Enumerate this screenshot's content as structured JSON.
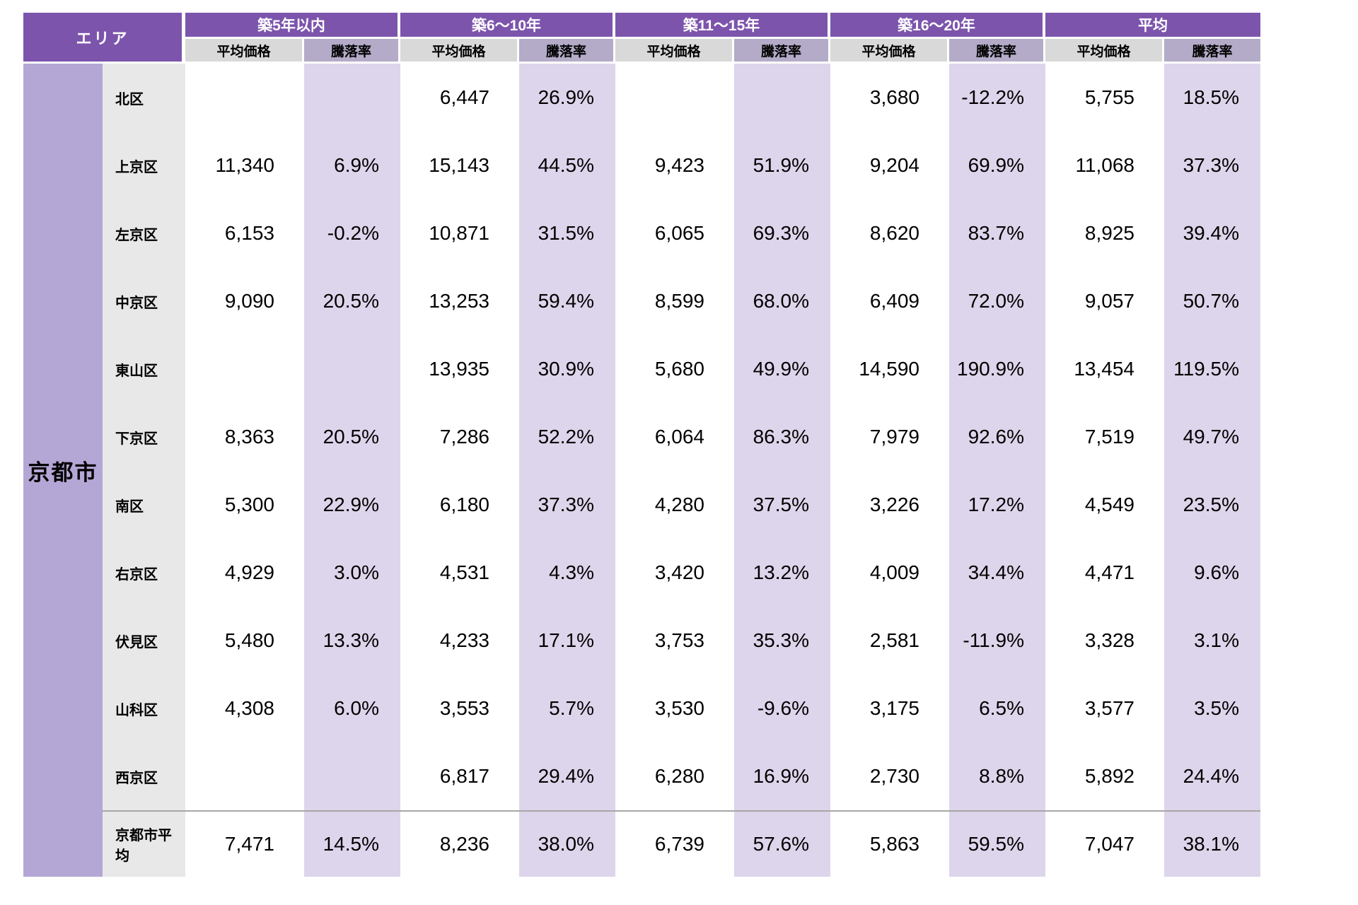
{
  "table": {
    "area_header": "エリア",
    "area_label": "京都市",
    "sub_price": "平均価格",
    "sub_rate": "騰落率",
    "groups": [
      "築5年以内",
      "築6〜10年",
      "築11〜15年",
      "築16〜20年",
      "平均"
    ],
    "rows": [
      {
        "ward": "北区",
        "summary": false,
        "values": [
          "",
          "",
          "6,447",
          "26.9%",
          "",
          "",
          "3,680",
          "-12.2%",
          "5,755",
          "18.5%"
        ]
      },
      {
        "ward": "上京区",
        "summary": false,
        "values": [
          "11,340",
          "6.9%",
          "15,143",
          "44.5%",
          "9,423",
          "51.9%",
          "9,204",
          "69.9%",
          "11,068",
          "37.3%"
        ]
      },
      {
        "ward": "左京区",
        "summary": false,
        "values": [
          "6,153",
          "-0.2%",
          "10,871",
          "31.5%",
          "6,065",
          "69.3%",
          "8,620",
          "83.7%",
          "8,925",
          "39.4%"
        ]
      },
      {
        "ward": "中京区",
        "summary": false,
        "values": [
          "9,090",
          "20.5%",
          "13,253",
          "59.4%",
          "8,599",
          "68.0%",
          "6,409",
          "72.0%",
          "9,057",
          "50.7%"
        ]
      },
      {
        "ward": "東山区",
        "summary": false,
        "values": [
          "",
          "",
          "13,935",
          "30.9%",
          "5,680",
          "49.9%",
          "14,590",
          "190.9%",
          "13,454",
          "119.5%"
        ]
      },
      {
        "ward": "下京区",
        "summary": false,
        "values": [
          "8,363",
          "20.5%",
          "7,286",
          "52.2%",
          "6,064",
          "86.3%",
          "7,979",
          "92.6%",
          "7,519",
          "49.7%"
        ]
      },
      {
        "ward": "南区",
        "summary": false,
        "values": [
          "5,300",
          "22.9%",
          "6,180",
          "37.3%",
          "4,280",
          "37.5%",
          "3,226",
          "17.2%",
          "4,549",
          "23.5%"
        ]
      },
      {
        "ward": "右京区",
        "summary": false,
        "values": [
          "4,929",
          "3.0%",
          "4,531",
          "4.3%",
          "3,420",
          "13.2%",
          "4,009",
          "34.4%",
          "4,471",
          "9.6%"
        ]
      },
      {
        "ward": "伏見区",
        "summary": false,
        "values": [
          "5,480",
          "13.3%",
          "4,233",
          "17.1%",
          "3,753",
          "35.3%",
          "2,581",
          "-11.9%",
          "3,328",
          "3.1%"
        ]
      },
      {
        "ward": "山科区",
        "summary": false,
        "values": [
          "4,308",
          "6.0%",
          "3,553",
          "5.7%",
          "3,530",
          "-9.6%",
          "3,175",
          "6.5%",
          "3,577",
          "3.5%"
        ]
      },
      {
        "ward": "西京区",
        "summary": false,
        "values": [
          "",
          "",
          "6,817",
          "29.4%",
          "6,280",
          "16.9%",
          "2,730",
          "8.8%",
          "5,892",
          "24.4%"
        ]
      },
      {
        "ward": "京都市平均",
        "summary": true,
        "values": [
          "7,471",
          "14.5%",
          "8,236",
          "38.0%",
          "6,739",
          "57.6%",
          "5,863",
          "59.5%",
          "7,047",
          "38.1%"
        ]
      }
    ],
    "colors": {
      "header_purple": "#7C54AC",
      "area_purple": "#B4A6D5",
      "subhead_gray": "#D9D9D9",
      "subhead_purple": "#B3ABC7",
      "band_purple": "#DDD5EB",
      "ward_gray": "#E8E8E8",
      "divider": "#A6A6A6"
    }
  },
  "chart_data": {
    "type": "table",
    "title": "エリア",
    "area": "京都市",
    "column_groups": [
      "築5年以内",
      "築6〜10年",
      "築11〜15年",
      "築16〜20年",
      "平均"
    ],
    "sub_columns": [
      "平均価格",
      "騰落率"
    ],
    "categories": [
      "北区",
      "上京区",
      "左京区",
      "中京区",
      "東山区",
      "下京区",
      "南区",
      "右京区",
      "伏見区",
      "山科区",
      "西京区",
      "京都市平均"
    ],
    "series": [
      {
        "name": "築5年以内 平均価格",
        "values": [
          null,
          11340,
          6153,
          9090,
          null,
          8363,
          5300,
          4929,
          5480,
          4308,
          null,
          7471
        ]
      },
      {
        "name": "築5年以内 騰落率(%)",
        "values": [
          null,
          6.9,
          -0.2,
          20.5,
          null,
          20.5,
          22.9,
          3.0,
          13.3,
          6.0,
          null,
          14.5
        ]
      },
      {
        "name": "築6〜10年 平均価格",
        "values": [
          6447,
          15143,
          10871,
          13253,
          13935,
          7286,
          6180,
          4531,
          4233,
          3553,
          6817,
          8236
        ]
      },
      {
        "name": "築6〜10年 騰落率(%)",
        "values": [
          26.9,
          44.5,
          31.5,
          59.4,
          30.9,
          52.2,
          37.3,
          4.3,
          17.1,
          5.7,
          29.4,
          38.0
        ]
      },
      {
        "name": "築11〜15年 平均価格",
        "values": [
          null,
          9423,
          6065,
          8599,
          5680,
          6064,
          4280,
          3420,
          3753,
          3530,
          6280,
          6739
        ]
      },
      {
        "name": "築11〜15年 騰落率(%)",
        "values": [
          null,
          51.9,
          69.3,
          68.0,
          49.9,
          86.3,
          37.5,
          13.2,
          35.3,
          -9.6,
          16.9,
          57.6
        ]
      },
      {
        "name": "築16〜20年 平均価格",
        "values": [
          3680,
          9204,
          8620,
          6409,
          14590,
          7979,
          3226,
          4009,
          2581,
          3175,
          2730,
          5863
        ]
      },
      {
        "name": "築16〜20年 騰落率(%)",
        "values": [
          -12.2,
          69.9,
          83.7,
          72.0,
          190.9,
          92.6,
          17.2,
          34.4,
          -11.9,
          6.5,
          8.8,
          59.5
        ]
      },
      {
        "name": "平均 平均価格",
        "values": [
          5755,
          11068,
          8925,
          9057,
          13454,
          7519,
          4549,
          4471,
          3328,
          3577,
          5892,
          7047
        ]
      },
      {
        "name": "平均 騰落率(%)",
        "values": [
          18.5,
          37.3,
          39.4,
          50.7,
          119.5,
          49.7,
          23.5,
          9.6,
          3.1,
          3.5,
          24.4,
          38.1
        ]
      }
    ],
    "layout": {
      "rate_columns_highlighted": true,
      "summary_row": "京都市平均",
      "grid": false
    }
  }
}
